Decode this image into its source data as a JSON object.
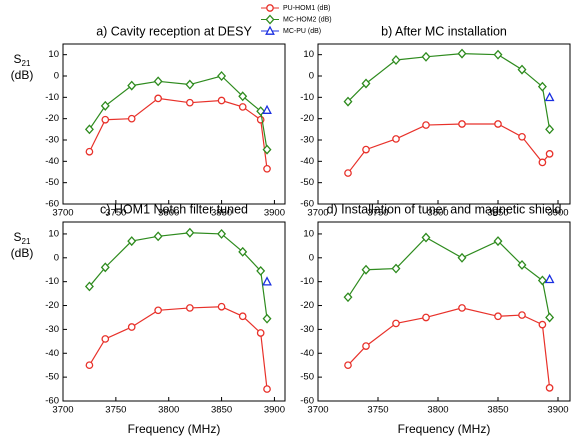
{
  "chart_data": [
    {
      "type": "line",
      "title": "a) Cavity reception at DESY",
      "ylabel_symbol": "S",
      "ylabel_subscript": "21",
      "ylabel_unit": "(dB)",
      "xlim": [
        3700,
        3910
      ],
      "xticks": [
        3700,
        3750,
        3800,
        3850,
        3900
      ],
      "ylim": [
        -60,
        15
      ],
      "yticks": [
        -60,
        -50,
        -40,
        -30,
        -20,
        -10,
        0,
        10
      ],
      "series": [
        {
          "name": "PU-HOM1 (dB)",
          "color": "#e8312a",
          "marker": "circle",
          "x": [
            3725,
            3740,
            3765,
            3790,
            3820,
            3850,
            3870,
            3887,
            3893
          ],
          "values": [
            -35.5,
            -20.5,
            -20,
            -10.5,
            -12.5,
            -11.5,
            -14.5,
            -20.5,
            -43.5
          ]
        },
        {
          "name": "MC-HOM2 (dB)",
          "color": "#2e8b1e",
          "marker": "diamond",
          "x": [
            3725,
            3740,
            3765,
            3790,
            3820,
            3850,
            3870,
            3887,
            3893
          ],
          "values": [
            -25,
            -14,
            -4.5,
            -2.5,
            -4,
            0,
            -9.5,
            -16.5,
            -34.5
          ]
        },
        {
          "name": "MC-PU (dB)",
          "color": "#1a2fe0",
          "marker": "triangle",
          "x": [
            3893
          ],
          "values": [
            -16
          ]
        }
      ]
    },
    {
      "type": "line",
      "title": "b) After MC installation",
      "xlim": [
        3700,
        3910
      ],
      "xticks": [
        3700,
        3750,
        3800,
        3850,
        3900
      ],
      "ylim": [
        -60,
        15
      ],
      "yticks": [
        -60,
        -50,
        -40,
        -30,
        -20,
        -10,
        0,
        10
      ],
      "series": [
        {
          "color": "#e8312a",
          "marker": "circle",
          "x": [
            3725,
            3740,
            3765,
            3790,
            3820,
            3850,
            3870,
            3887,
            3893
          ],
          "values": [
            -45.5,
            -34.5,
            -29.5,
            -23,
            -22.5,
            -22.5,
            -28.5,
            -40.5,
            -36.5
          ]
        },
        {
          "color": "#2e8b1e",
          "marker": "diamond",
          "x": [
            3725,
            3740,
            3765,
            3790,
            3820,
            3850,
            3870,
            3887,
            3893
          ],
          "values": [
            -12,
            -3.5,
            7.5,
            9,
            10.5,
            10,
            3,
            -5,
            -25
          ]
        },
        {
          "color": "#1a2fe0",
          "marker": "triangle",
          "x": [
            3893
          ],
          "values": [
            -10
          ]
        }
      ]
    },
    {
      "type": "line",
      "title": "c) HOM1 Notch filter tuned",
      "ylabel_symbol": "S",
      "ylabel_subscript": "21",
      "ylabel_unit": "(dB)",
      "xlabel": "Frequency (MHz)",
      "xlim": [
        3700,
        3910
      ],
      "xticks": [
        3700,
        3750,
        3800,
        3850,
        3900
      ],
      "ylim": [
        -60,
        15
      ],
      "yticks": [
        -60,
        -50,
        -40,
        -30,
        -20,
        -10,
        0,
        10
      ],
      "series": [
        {
          "color": "#e8312a",
          "marker": "circle",
          "x": [
            3725,
            3740,
            3765,
            3790,
            3820,
            3850,
            3870,
            3887,
            3893
          ],
          "values": [
            -45,
            -34,
            -29,
            -22,
            -21,
            -20.5,
            -24.5,
            -31.5,
            -55
          ]
        },
        {
          "color": "#2e8b1e",
          "marker": "diamond",
          "x": [
            3725,
            3740,
            3765,
            3790,
            3820,
            3850,
            3870,
            3887,
            3893
          ],
          "values": [
            -12,
            -4,
            7,
            9,
            10.5,
            10,
            2.5,
            -5.5,
            -25.5
          ]
        },
        {
          "color": "#1a2fe0",
          "marker": "triangle",
          "x": [
            3893
          ],
          "values": [
            -10
          ]
        }
      ]
    },
    {
      "type": "line",
      "title": "d) Installation of tuner and magnetic shield",
      "xlabel": "Frequency (MHz)",
      "xlim": [
        3700,
        3910
      ],
      "xticks": [
        3700,
        3750,
        3800,
        3850,
        3900
      ],
      "ylim": [
        -60,
        15
      ],
      "yticks": [
        -60,
        -50,
        -40,
        -30,
        -20,
        -10,
        0,
        10
      ],
      "series": [
        {
          "color": "#e8312a",
          "marker": "circle",
          "x": [
            3725,
            3740,
            3765,
            3790,
            3820,
            3850,
            3870,
            3887,
            3893
          ],
          "values": [
            -45,
            -37,
            -27.5,
            -25,
            -21,
            -24.5,
            -24,
            -28,
            -54.5
          ]
        },
        {
          "color": "#2e8b1e",
          "marker": "diamond",
          "x": [
            3725,
            3740,
            3765,
            3790,
            3820,
            3850,
            3870,
            3887,
            3893
          ],
          "values": [
            -16.5,
            -5,
            -4.5,
            8.5,
            0,
            7,
            -3,
            -9.5,
            -25
          ]
        },
        {
          "color": "#1a2fe0",
          "marker": "triangle",
          "x": [
            3893
          ],
          "values": [
            -9
          ]
        }
      ]
    }
  ]
}
